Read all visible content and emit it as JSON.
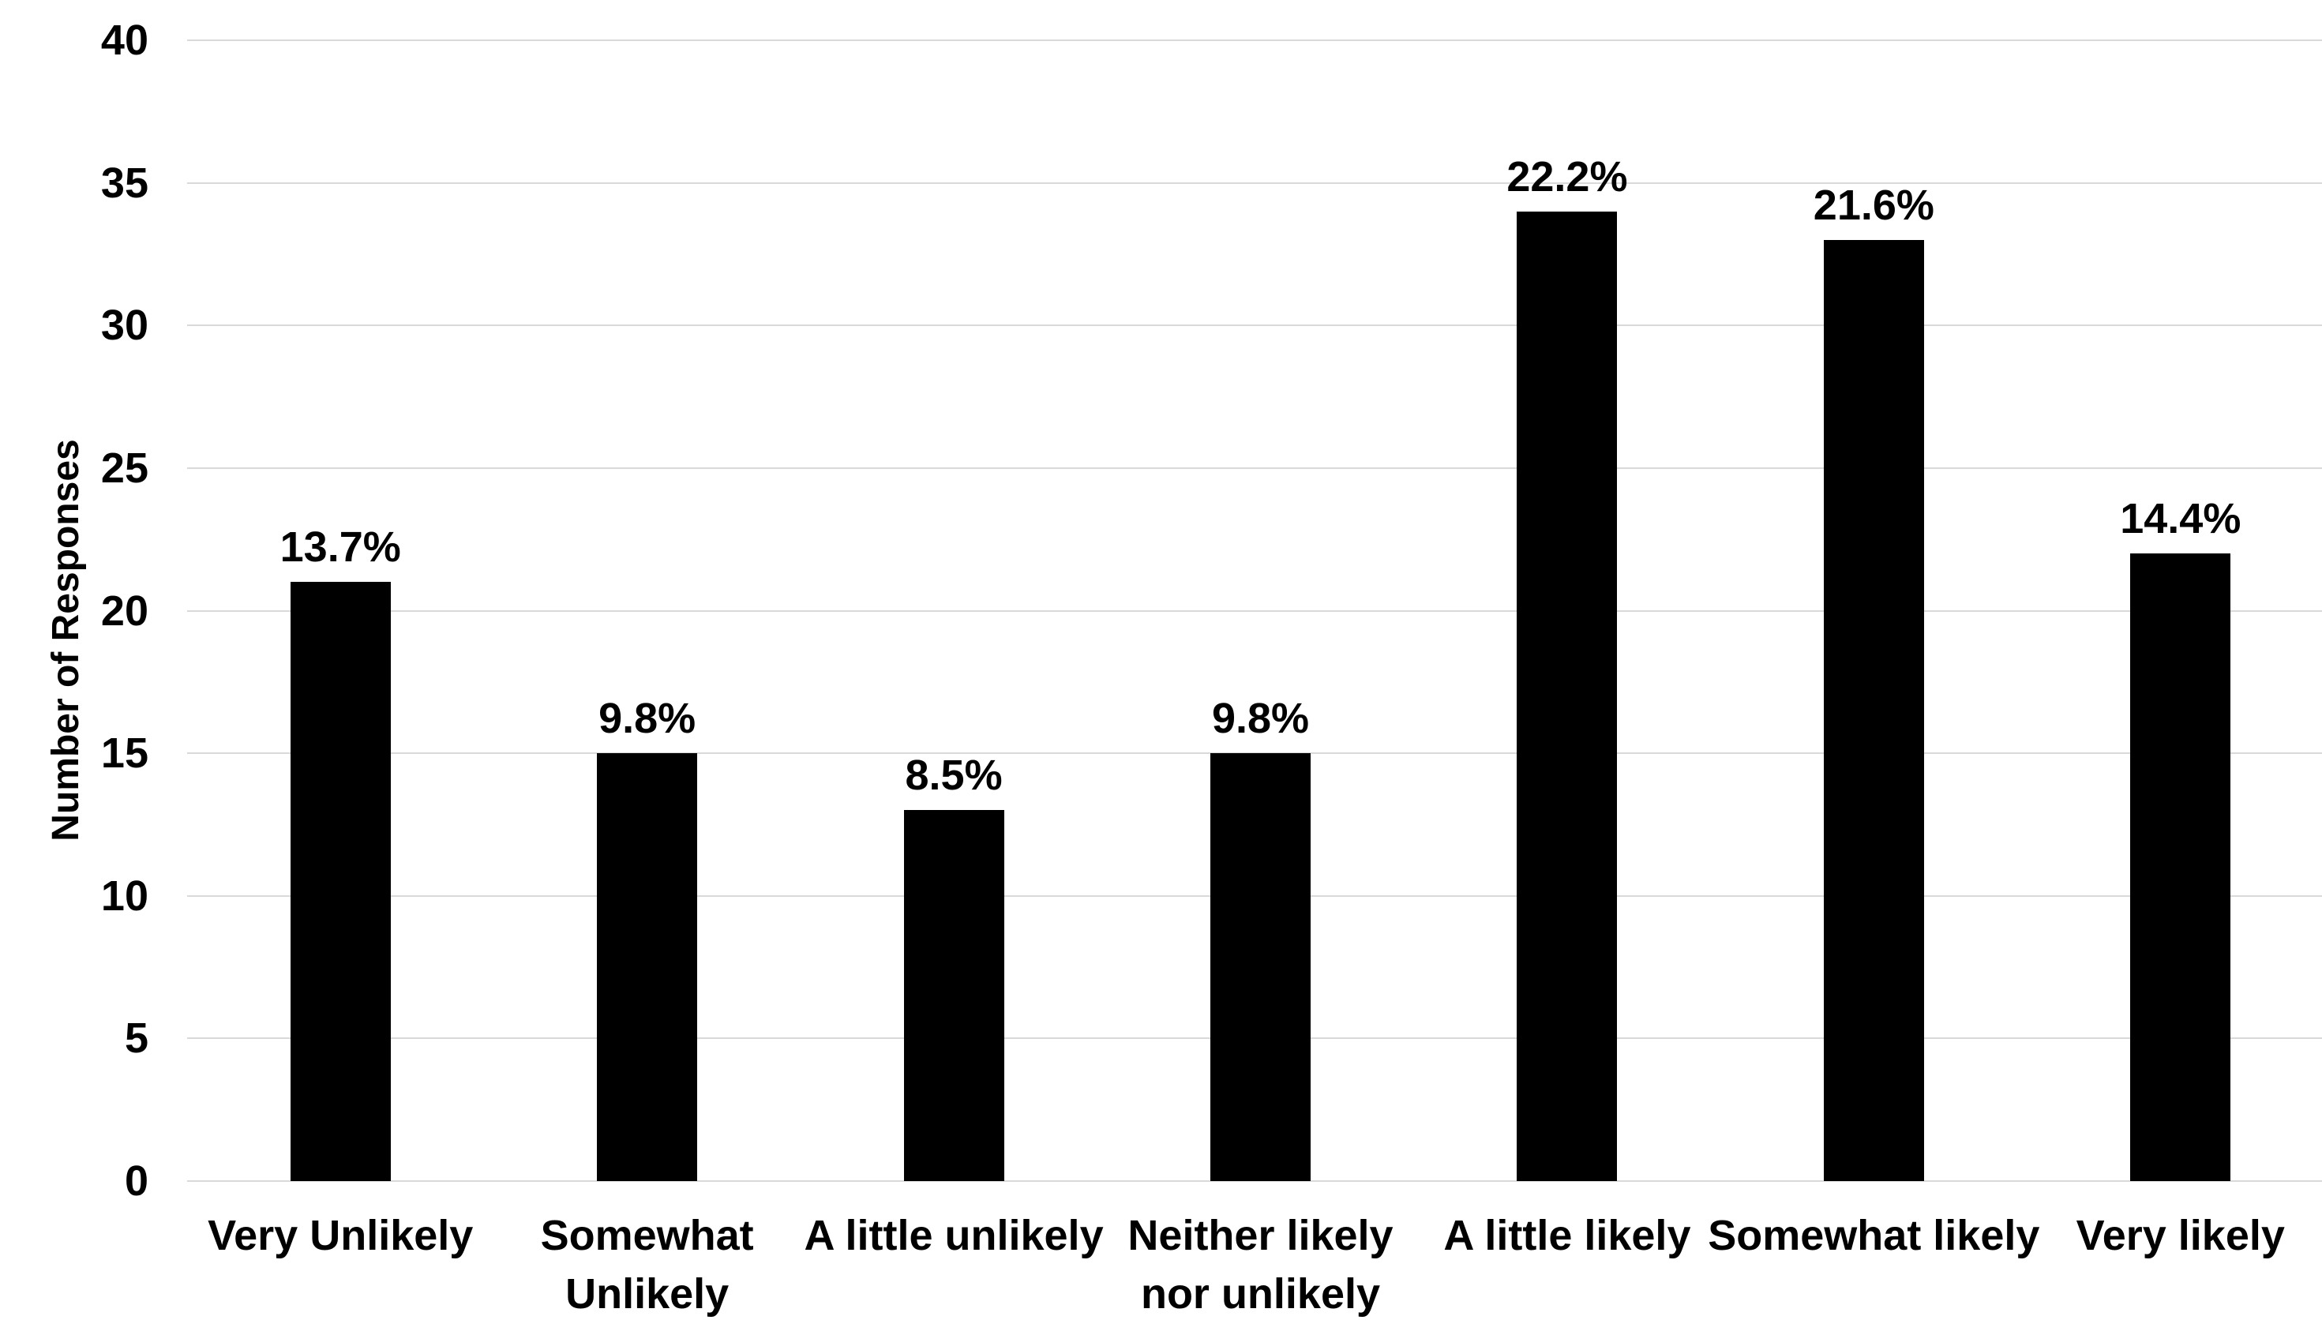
{
  "chart_data": {
    "type": "bar",
    "title": "",
    "xlabel": "",
    "ylabel": "Number of Responses",
    "categories": [
      "Very Unlikely",
      "Somewhat\nUnlikely",
      "A little unlikely",
      "Neither likely\nnor unlikely",
      "A little likely",
      "Somewhat likely",
      "Very likely"
    ],
    "values": [
      21,
      15,
      13,
      15,
      34,
      33,
      22
    ],
    "bar_labels": [
      "13.7%",
      "9.8%",
      "8.5%",
      "9.8%",
      "22.2%",
      "21.6%",
      "14.4%"
    ],
    "y_ticks": [
      0,
      5,
      10,
      15,
      20,
      25,
      30,
      35,
      40
    ],
    "ylim": [
      0,
      40
    ],
    "grid": true,
    "legend_position": "none",
    "bar_color": "#000000",
    "gridline_color": "#d9d9d9",
    "text_color": "#000000",
    "background_color": "#ffffff"
  }
}
